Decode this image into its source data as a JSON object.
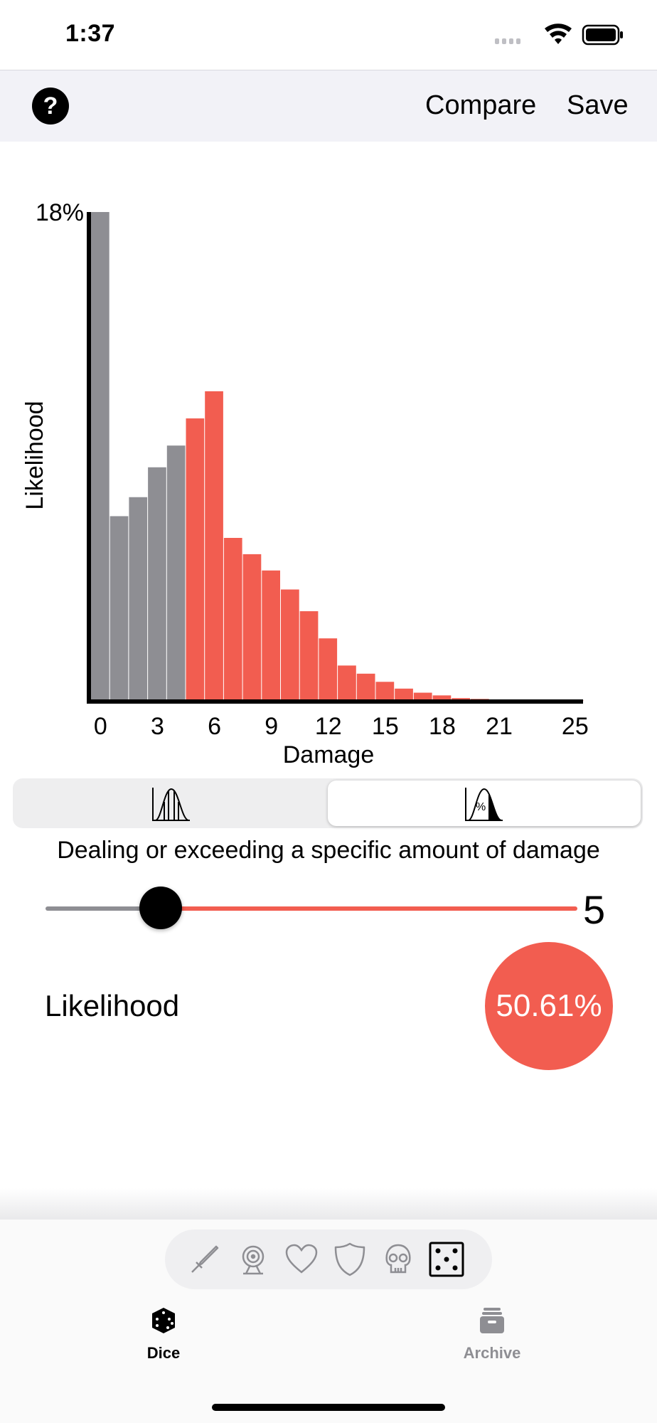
{
  "status": {
    "time": "1:37"
  },
  "nav": {
    "help_label": "?",
    "compare_label": "Compare",
    "save_label": "Save"
  },
  "chart_data": {
    "type": "bar",
    "xlabel": "Damage",
    "ylabel": "Likelihood",
    "ymax_label": "18%",
    "ylim": [
      0,
      18
    ],
    "x_tick_labels": [
      "0",
      "3",
      "6",
      "9",
      "12",
      "15",
      "18",
      "21",
      "25"
    ],
    "x_tick_values": [
      0,
      3,
      6,
      9,
      12,
      15,
      18,
      21,
      25
    ],
    "x": [
      0,
      1,
      2,
      3,
      4,
      5,
      6,
      7,
      8,
      9,
      10,
      11,
      12,
      13,
      14,
      15,
      16,
      17,
      18,
      19,
      20,
      21,
      22,
      23,
      24,
      25
    ],
    "values": [
      18.0,
      6.8,
      7.5,
      8.6,
      9.4,
      10.4,
      11.4,
      6.0,
      5.4,
      4.8,
      4.1,
      3.3,
      2.3,
      1.3,
      1.0,
      0.7,
      0.45,
      0.3,
      0.2,
      0.1,
      0.07,
      0.05,
      0.03,
      0.02,
      0.01,
      0.01
    ],
    "threshold": 5,
    "colors": {
      "below": "#8e8e93",
      "at_or_above": "#f25d50",
      "axis": "#000000"
    }
  },
  "mode_selector": {
    "options": [
      {
        "name": "distribution",
        "icon": "distribution-icon"
      },
      {
        "name": "exceed-probability",
        "icon": "percent-curve-icon"
      }
    ],
    "selected_index": 1
  },
  "description": "Dealing or exceeding a specific amount of damage",
  "slider": {
    "value": "5",
    "min": 0,
    "max": 25,
    "fraction": 0.2
  },
  "result": {
    "label": "Likelihood",
    "value": "50.61%"
  },
  "categories": {
    "icons": [
      "sword-icon",
      "target-icon",
      "heart-icon",
      "shield-icon",
      "skull-icon",
      "dice-icon"
    ],
    "selected_index": 5
  },
  "tabs": [
    {
      "label": "Dice",
      "icon": "dice-icon",
      "active": true
    },
    {
      "label": "Archive",
      "icon": "archive-icon",
      "active": false
    }
  ],
  "colors": {
    "accent": "#f25d50",
    "inactive": "#8e8e93"
  }
}
